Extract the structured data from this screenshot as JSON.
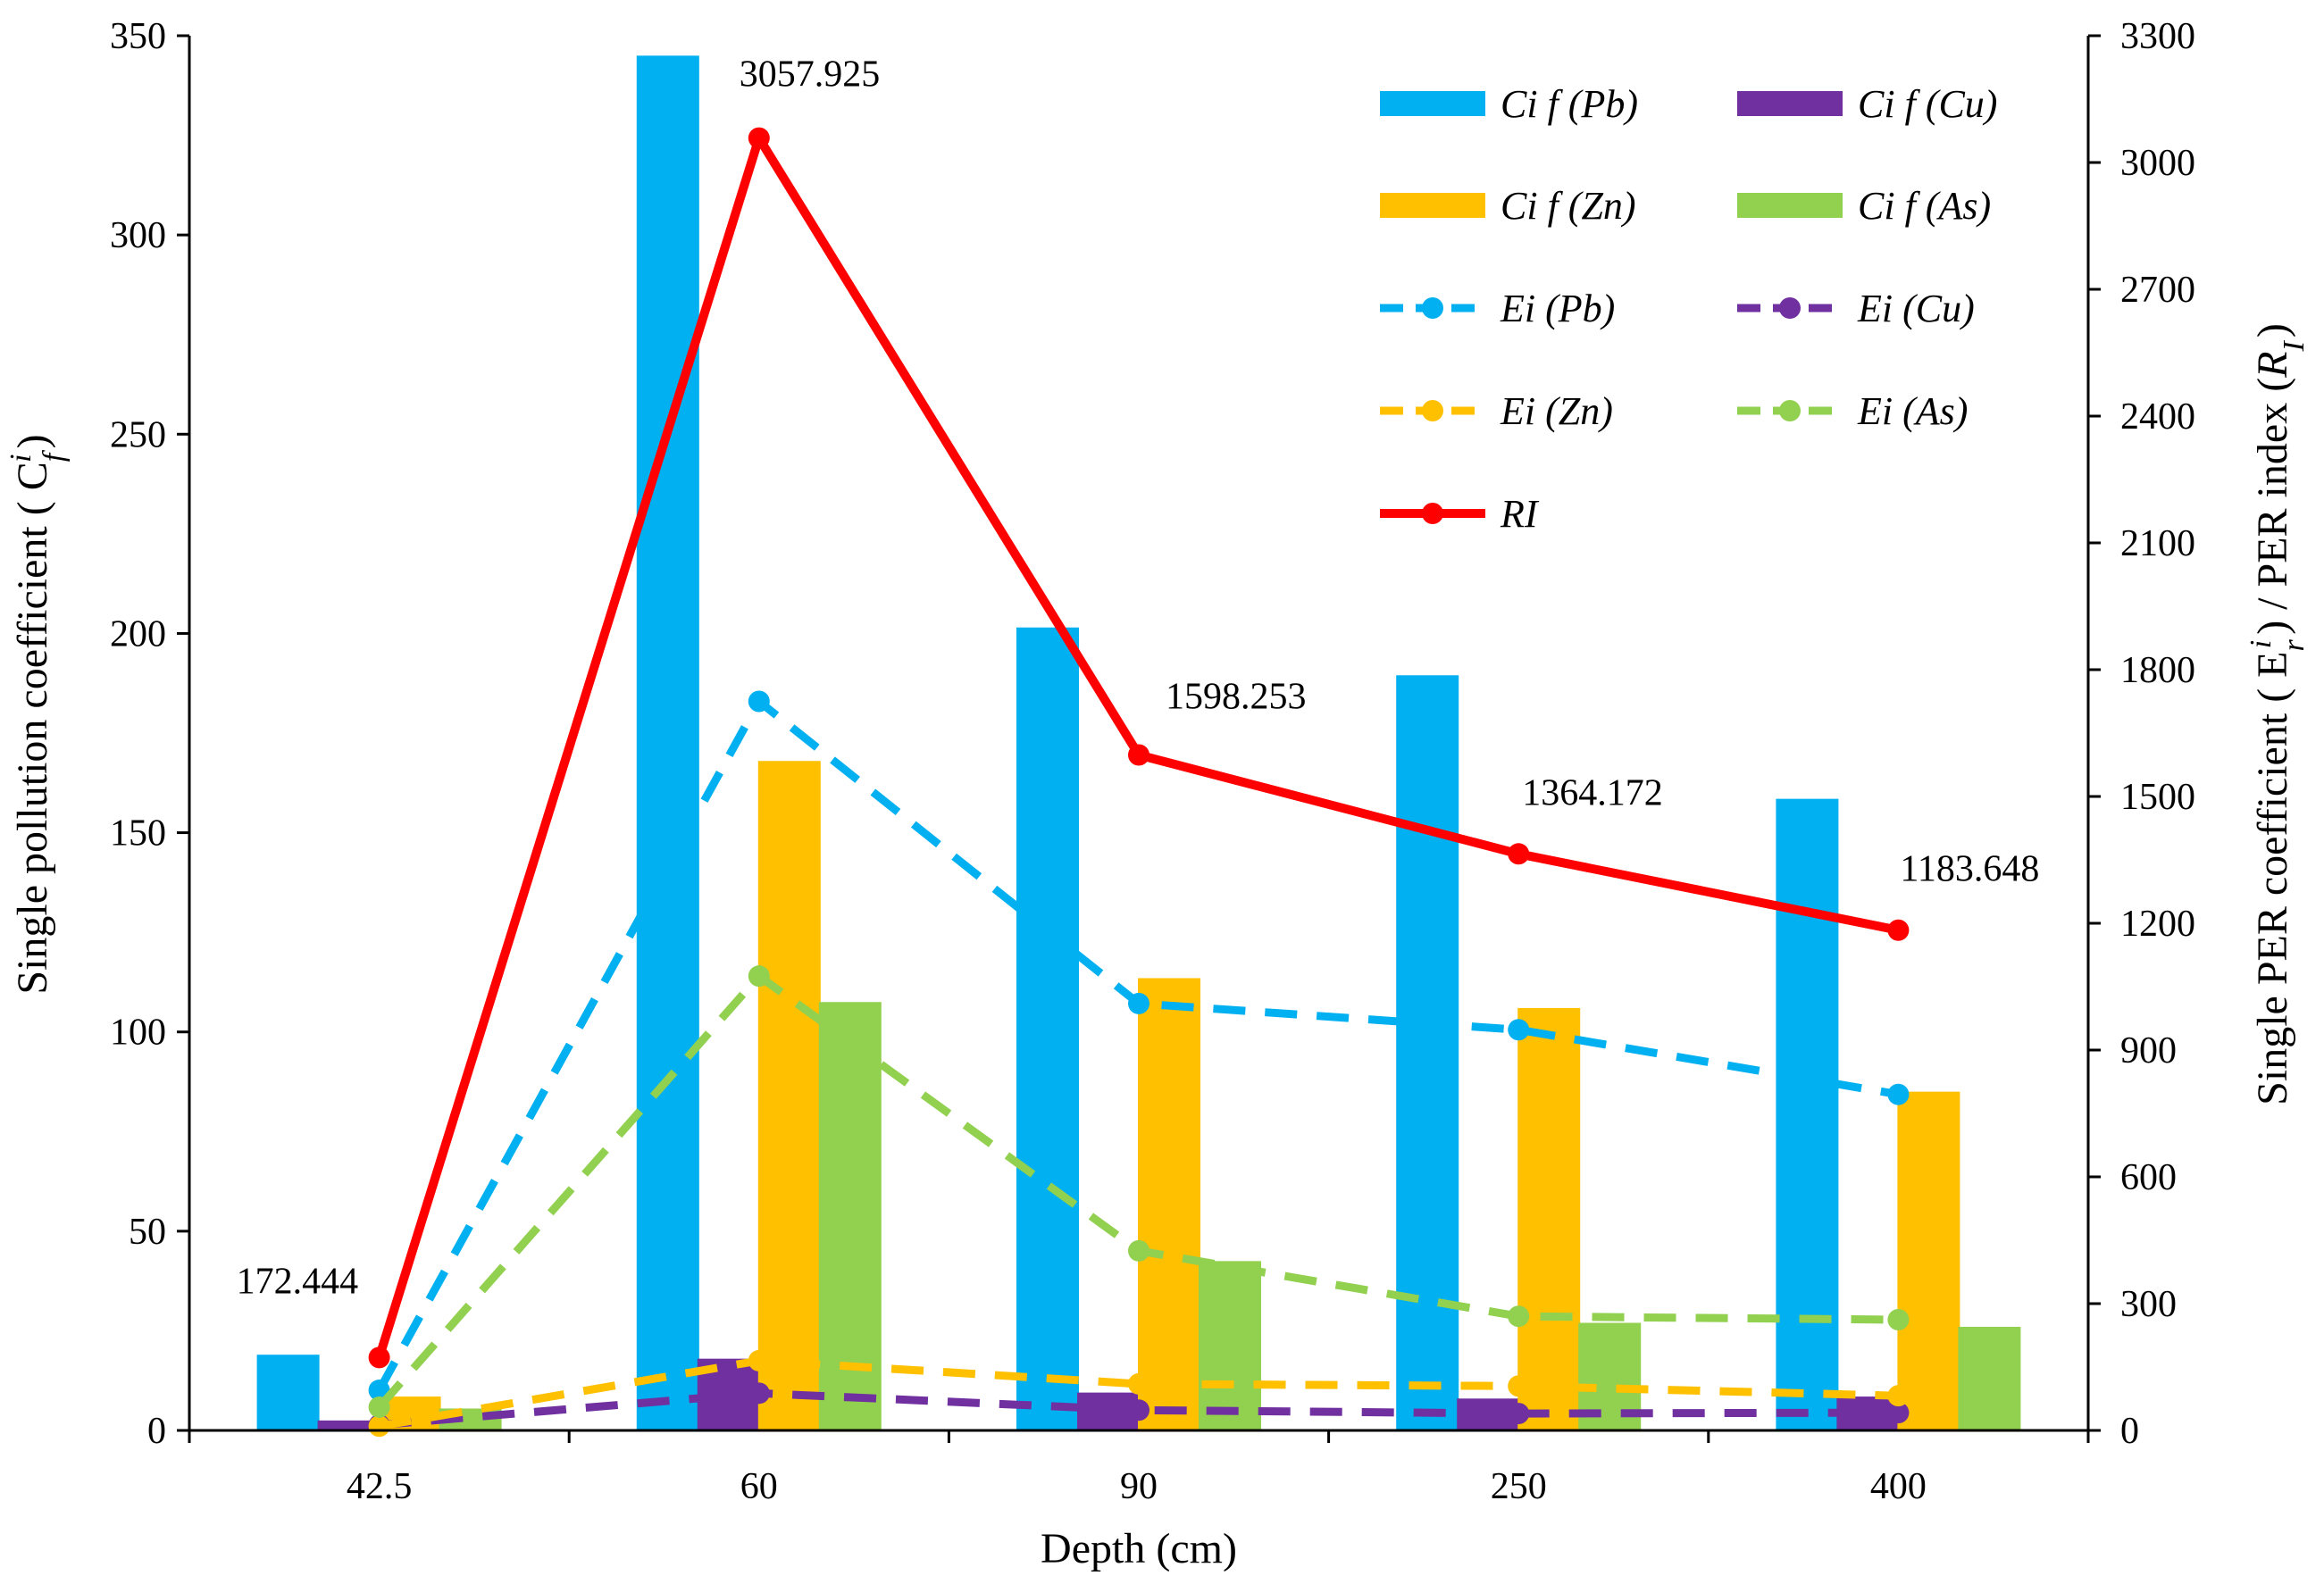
{
  "chart_data": {
    "type": "bar",
    "categories": [
      "42.5",
      "60",
      "90",
      "250",
      "400"
    ],
    "xlabel": "Depth (cm)",
    "ylabel_left": "Single pollution coefficient ( C",
    "ylabel_left_sub": "f",
    "ylabel_left_sup": "i",
    "ylabel_left_end": ")",
    "ylabel_right_main": "Single PER coefficient ( E",
    "ylabel_right_sub": "r",
    "ylabel_right_sup": "i",
    "ylabel_right_mid": ") / PER index (",
    "ylabel_right_ri": "R",
    "ylabel_right_ri_sub": "I",
    "ylabel_right_end": ")",
    "ylim_left": [
      0,
      350
    ],
    "yticks_left": [
      0,
      50,
      100,
      150,
      200,
      250,
      300,
      350
    ],
    "ylim_right": [
      0,
      3300
    ],
    "yticks_right": [
      0,
      300,
      600,
      900,
      1200,
      1500,
      1800,
      2100,
      2400,
      2700,
      3000,
      3300
    ],
    "bar_series": [
      {
        "name": "Ci f (Pb)",
        "color": "#00B0F0",
        "values": [
          19,
          345,
          201.5,
          189.5,
          158.5
        ]
      },
      {
        "name": "Ci f (Cu)",
        "color": "#7030A0",
        "values": [
          2.5,
          18,
          9.5,
          8,
          8.5
        ]
      },
      {
        "name": "Ci f (Zn)",
        "color": "#FFC000",
        "values": [
          8.5,
          168,
          113.5,
          106,
          85
        ]
      },
      {
        "name": "Ci f (As)",
        "color": "#92D050",
        "values": [
          5.5,
          107.5,
          42.5,
          27,
          26
        ]
      }
    ],
    "line_series": [
      {
        "name": "Ei (Pb)",
        "color": "#00B0F0",
        "dashed": true,
        "values": [
          95,
          1725,
          1010,
          948,
          795
        ]
      },
      {
        "name": "Ei (Cu)",
        "color": "#7030A0",
        "dashed": true,
        "values": [
          13,
          88,
          48,
          40,
          42
        ]
      },
      {
        "name": "Ei (Zn)",
        "color": "#FFC000",
        "dashed": true,
        "values": [
          10,
          165,
          110,
          105,
          82
        ]
      },
      {
        "name": "Ei (As)",
        "color": "#92D050",
        "dashed": true,
        "values": [
          55,
          1075,
          425,
          270,
          262
        ]
      },
      {
        "name": "RI",
        "color": "#FF0000",
        "dashed": false,
        "values": [
          172.444,
          3057.925,
          1598.253,
          1364.172,
          1183.648
        ]
      }
    ],
    "ri_labels": [
      "172.444",
      "3057.925",
      "1598.253",
      "1364.172",
      "1183.648"
    ]
  }
}
